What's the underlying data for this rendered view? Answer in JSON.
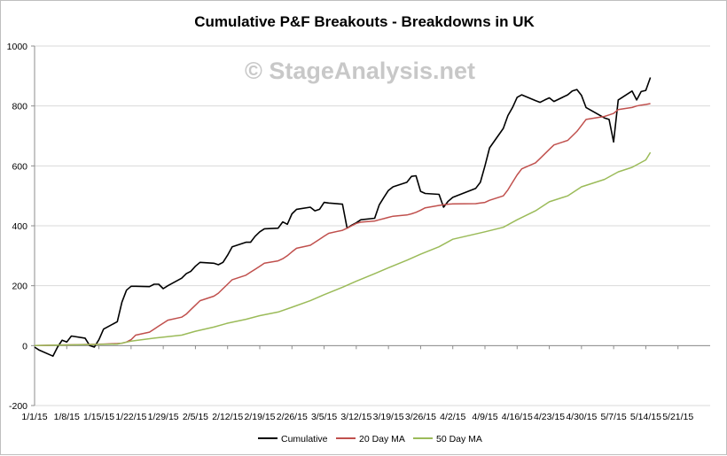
{
  "chart_data": {
    "type": "line",
    "title": "Cumulative P&F Breakouts - Breakdowns in UK",
    "watermark": "© StageAnalysis.net",
    "xlabel": "",
    "ylabel": "",
    "ylim": [
      -200,
      1000
    ],
    "yticks": [
      -200,
      0,
      200,
      400,
      600,
      800,
      1000
    ],
    "xlim": [
      "2015-01-01",
      "2015-05-28"
    ],
    "xticks": [
      "1/1/15",
      "1/8/15",
      "1/15/15",
      "1/22/15",
      "1/29/15",
      "2/5/15",
      "2/12/15",
      "2/19/15",
      "2/26/15",
      "3/5/15",
      "3/12/15",
      "3/19/15",
      "3/26/15",
      "4/2/15",
      "4/9/15",
      "4/16/15",
      "4/23/15",
      "4/30/15",
      "5/7/15",
      "5/14/15",
      "5/21/15"
    ],
    "grid": "horizontal",
    "legend": "bottom",
    "series": [
      {
        "name": "Cumulative",
        "color": "#000000",
        "x": [
          "2015-01-01",
          "2015-01-02",
          "2015-01-05",
          "2015-01-06",
          "2015-01-07",
          "2015-01-08",
          "2015-01-09",
          "2015-01-12",
          "2015-01-13",
          "2015-01-14",
          "2015-01-15",
          "2015-01-16",
          "2015-01-19",
          "2015-01-20",
          "2015-01-21",
          "2015-01-22",
          "2015-01-23",
          "2015-01-26",
          "2015-01-27",
          "2015-01-28",
          "2015-01-29",
          "2015-01-30",
          "2015-02-02",
          "2015-02-03",
          "2015-02-04",
          "2015-02-05",
          "2015-02-06",
          "2015-02-09",
          "2015-02-10",
          "2015-02-11",
          "2015-02-12",
          "2015-02-13",
          "2015-02-16",
          "2015-02-17",
          "2015-02-18",
          "2015-02-19",
          "2015-02-20",
          "2015-02-23",
          "2015-02-24",
          "2015-02-25",
          "2015-02-26",
          "2015-02-27",
          "2015-03-02",
          "2015-03-03",
          "2015-03-04",
          "2015-03-05",
          "2015-03-06",
          "2015-03-09",
          "2015-03-10",
          "2015-03-11",
          "2015-03-12",
          "2015-03-13",
          "2015-03-16",
          "2015-03-17",
          "2015-03-18",
          "2015-03-19",
          "2015-03-20",
          "2015-03-23",
          "2015-03-24",
          "2015-03-25",
          "2015-03-26",
          "2015-03-27",
          "2015-03-30",
          "2015-03-31",
          "2015-04-01",
          "2015-04-02",
          "2015-04-07",
          "2015-04-08",
          "2015-04-09",
          "2015-04-10",
          "2015-04-13",
          "2015-04-14",
          "2015-04-15",
          "2015-04-16",
          "2015-04-17",
          "2015-04-20",
          "2015-04-21",
          "2015-04-22",
          "2015-04-23",
          "2015-04-24",
          "2015-04-27",
          "2015-04-28",
          "2015-04-29",
          "2015-04-30",
          "2015-05-01",
          "2015-05-05",
          "2015-05-06",
          "2015-05-07",
          "2015-05-08",
          "2015-05-11",
          "2015-05-12",
          "2015-05-13",
          "2015-05-14",
          "2015-05-15"
        ],
        "y": [
          -5,
          -15,
          -35,
          -5,
          18,
          12,
          32,
          25,
          0,
          -5,
          20,
          55,
          80,
          145,
          185,
          198,
          198,
          197,
          205,
          205,
          190,
          200,
          225,
          240,
          248,
          265,
          278,
          275,
          270,
          278,
          302,
          330,
          345,
          345,
          365,
          380,
          390,
          392,
          413,
          405,
          440,
          455,
          462,
          450,
          455,
          478,
          476,
          472,
          392,
          402,
          410,
          420,
          425,
          470,
          495,
          518,
          530,
          545,
          565,
          567,
          515,
          508,
          505,
          462,
          482,
          495,
          525,
          545,
          600,
          660,
          725,
          768,
          795,
          829,
          837,
          818,
          812,
          820,
          827,
          815,
          837,
          850,
          855,
          835,
          795,
          760,
          755,
          680,
          820,
          850,
          820,
          848,
          852,
          895
        ]
      },
      {
        "name": "20 Day MA",
        "color": "#c0504d",
        "x": [
          "2015-01-01",
          "2015-01-16",
          "2015-01-19",
          "2015-01-20",
          "2015-01-21",
          "2015-01-22",
          "2015-01-23",
          "2015-01-26",
          "2015-01-27",
          "2015-01-28",
          "2015-01-29",
          "2015-01-30",
          "2015-02-02",
          "2015-02-03",
          "2015-02-04",
          "2015-02-05",
          "2015-02-06",
          "2015-02-09",
          "2015-02-10",
          "2015-02-11",
          "2015-02-12",
          "2015-02-13",
          "2015-02-16",
          "2015-02-17",
          "2015-02-18",
          "2015-02-19",
          "2015-02-20",
          "2015-02-23",
          "2015-02-24",
          "2015-02-25",
          "2015-02-26",
          "2015-02-27",
          "2015-03-02",
          "2015-03-03",
          "2015-03-04",
          "2015-03-05",
          "2015-03-06",
          "2015-03-09",
          "2015-03-10",
          "2015-03-11",
          "2015-03-12",
          "2015-03-13",
          "2015-03-16",
          "2015-03-17",
          "2015-03-18",
          "2015-03-19",
          "2015-03-20",
          "2015-03-23",
          "2015-03-24",
          "2015-03-25",
          "2015-03-26",
          "2015-03-27",
          "2015-03-30",
          "2015-03-31",
          "2015-04-01",
          "2015-04-02",
          "2015-04-07",
          "2015-04-08",
          "2015-04-09",
          "2015-04-10",
          "2015-04-13",
          "2015-04-14",
          "2015-04-15",
          "2015-04-16",
          "2015-04-17",
          "2015-04-20",
          "2015-04-21",
          "2015-04-22",
          "2015-04-23",
          "2015-04-24",
          "2015-04-27",
          "2015-04-28",
          "2015-04-29",
          "2015-04-30",
          "2015-05-01",
          "2015-05-05",
          "2015-05-06",
          "2015-05-07",
          "2015-05-08",
          "2015-05-11",
          "2015-05-12",
          "2015-05-13",
          "2015-05-14",
          "2015-05-15"
        ],
        "y": [
          0,
          5,
          7,
          8,
          12,
          20,
          35,
          45,
          55,
          65,
          75,
          85,
          95,
          105,
          120,
          135,
          150,
          165,
          175,
          190,
          205,
          220,
          235,
          245,
          255,
          265,
          275,
          283,
          290,
          300,
          313,
          325,
          335,
          345,
          355,
          365,
          375,
          385,
          392,
          400,
          408,
          412,
          416,
          420,
          424,
          428,
          432,
          436,
          440,
          445,
          452,
          460,
          468,
          470,
          472,
          473,
          474,
          476,
          478,
          485,
          500,
          520,
          545,
          570,
          590,
          610,
          625,
          640,
          655,
          670,
          685,
          700,
          715,
          735,
          755,
          765,
          770,
          775,
          788,
          795,
          800,
          803,
          805,
          808
        ]
      },
      {
        "name": "50 Day MA",
        "color": "#9bbb59",
        "x": [
          "2015-01-01",
          "2015-01-19",
          "2015-01-22",
          "2015-01-27",
          "2015-02-02",
          "2015-02-05",
          "2015-02-09",
          "2015-02-12",
          "2015-02-16",
          "2015-02-19",
          "2015-02-23",
          "2015-02-26",
          "2015-03-02",
          "2015-03-05",
          "2015-03-09",
          "2015-03-12",
          "2015-03-16",
          "2015-03-19",
          "2015-03-23",
          "2015-03-26",
          "2015-03-30",
          "2015-04-02",
          "2015-04-09",
          "2015-04-13",
          "2015-04-16",
          "2015-04-20",
          "2015-04-23",
          "2015-04-27",
          "2015-04-30",
          "2015-05-05",
          "2015-05-08",
          "2015-05-11",
          "2015-05-14",
          "2015-05-15"
        ],
        "y": [
          0,
          5,
          15,
          25,
          35,
          48,
          62,
          75,
          88,
          100,
          112,
          128,
          150,
          170,
          195,
          215,
          240,
          260,
          285,
          305,
          330,
          355,
          380,
          395,
          420,
          450,
          480,
          500,
          530,
          555,
          580,
          595,
          620,
          645
        ]
      }
    ]
  }
}
